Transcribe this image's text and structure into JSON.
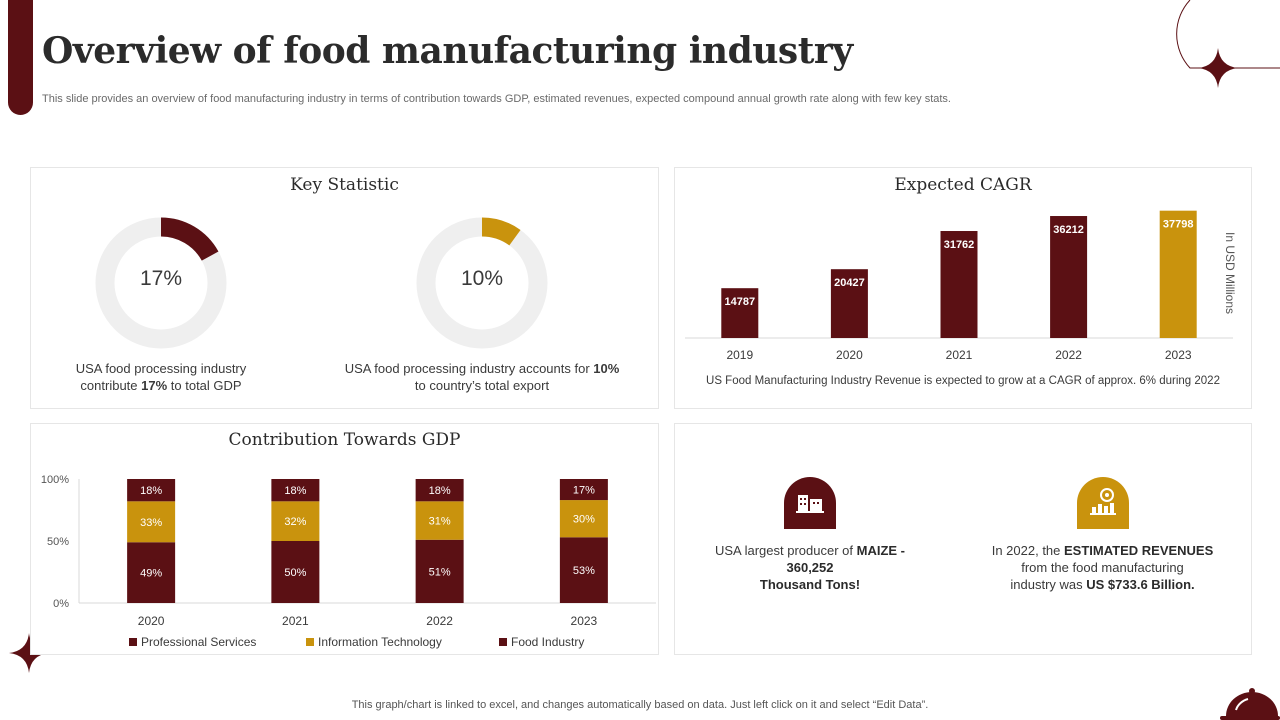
{
  "page": {
    "title": "Overview of food manufacturing industry",
    "subtitle": "This slide provides an overview of food manufacturing industry in terms of contribution towards GDP, estimated revenues, expected compound annual growth rate along with few key stats.",
    "footer": "This graph/chart is linked to excel, and changes automatically based on data. Just left click on it and select “Edit Data”."
  },
  "colors": {
    "maroon": "#5b1014",
    "gold": "#c9930d",
    "track": "#efefef"
  },
  "key_statistic": {
    "title": "Key Statistic",
    "donuts": [
      {
        "value": 17,
        "label": "17%",
        "color": "#5b1014",
        "caption_line1": "USA food processing industry",
        "caption_pre": "contribute ",
        "caption_bold": "17%",
        "caption_post": " to total GDP"
      },
      {
        "value": 10,
        "label": "10%",
        "color": "#c9930d",
        "caption_line1_pre": "USA food processing industry accounts for ",
        "caption_line1_bold": "10%",
        "caption_line2": "to country’s total export"
      }
    ]
  },
  "facts": {
    "left": {
      "icon": "factory-icon",
      "pre": "USA largest producer of ",
      "bold1": "MAIZE - 360,252",
      "bold2": "Thousand Tons!"
    },
    "right": {
      "icon": "revenue-growth-icon",
      "pre": "In 2022,  the ",
      "bold1": "ESTIMATED REVENUES",
      "mid1": "from the food manufacturing",
      "mid2": "industry was ",
      "bold2": "US $733.6  Billion."
    }
  },
  "chart_data": [
    {
      "type": "bar",
      "title": "Expected CAGR",
      "categories": [
        "2019",
        "2020",
        "2021",
        "2022",
        "2023"
      ],
      "values": [
        14787,
        20427,
        31762,
        36212,
        37798
      ],
      "highlight_index": 4,
      "ylabel": "In USD Millions",
      "ylim": [
        0,
        38000
      ],
      "grid": false,
      "note": "US Food Manufacturing Industry Revenue  is expected to grow at a CAGR of approx. 6% during 2022"
    },
    {
      "type": "bar",
      "stacked": true,
      "title": "Contribution Towards GDP",
      "categories": [
        "2020",
        "2021",
        "2022",
        "2023"
      ],
      "series": [
        {
          "name": "Food Industry",
          "values": [
            49,
            50,
            51,
            53
          ],
          "color": "#5b1014"
        },
        {
          "name": "Information Technology",
          "values": [
            33,
            32,
            31,
            30
          ],
          "color": "#c9930d"
        },
        {
          "name": "Professional Services",
          "values": [
            18,
            18,
            18,
            17
          ],
          "color": "#5b1014"
        }
      ],
      "legend": [
        "Professional Services",
        "Information Technology",
        "Food Industry"
      ],
      "yticks": [
        "0%",
        "50%",
        "100%"
      ],
      "ylim": [
        0,
        100
      ],
      "legend_position": "bottom"
    }
  ]
}
